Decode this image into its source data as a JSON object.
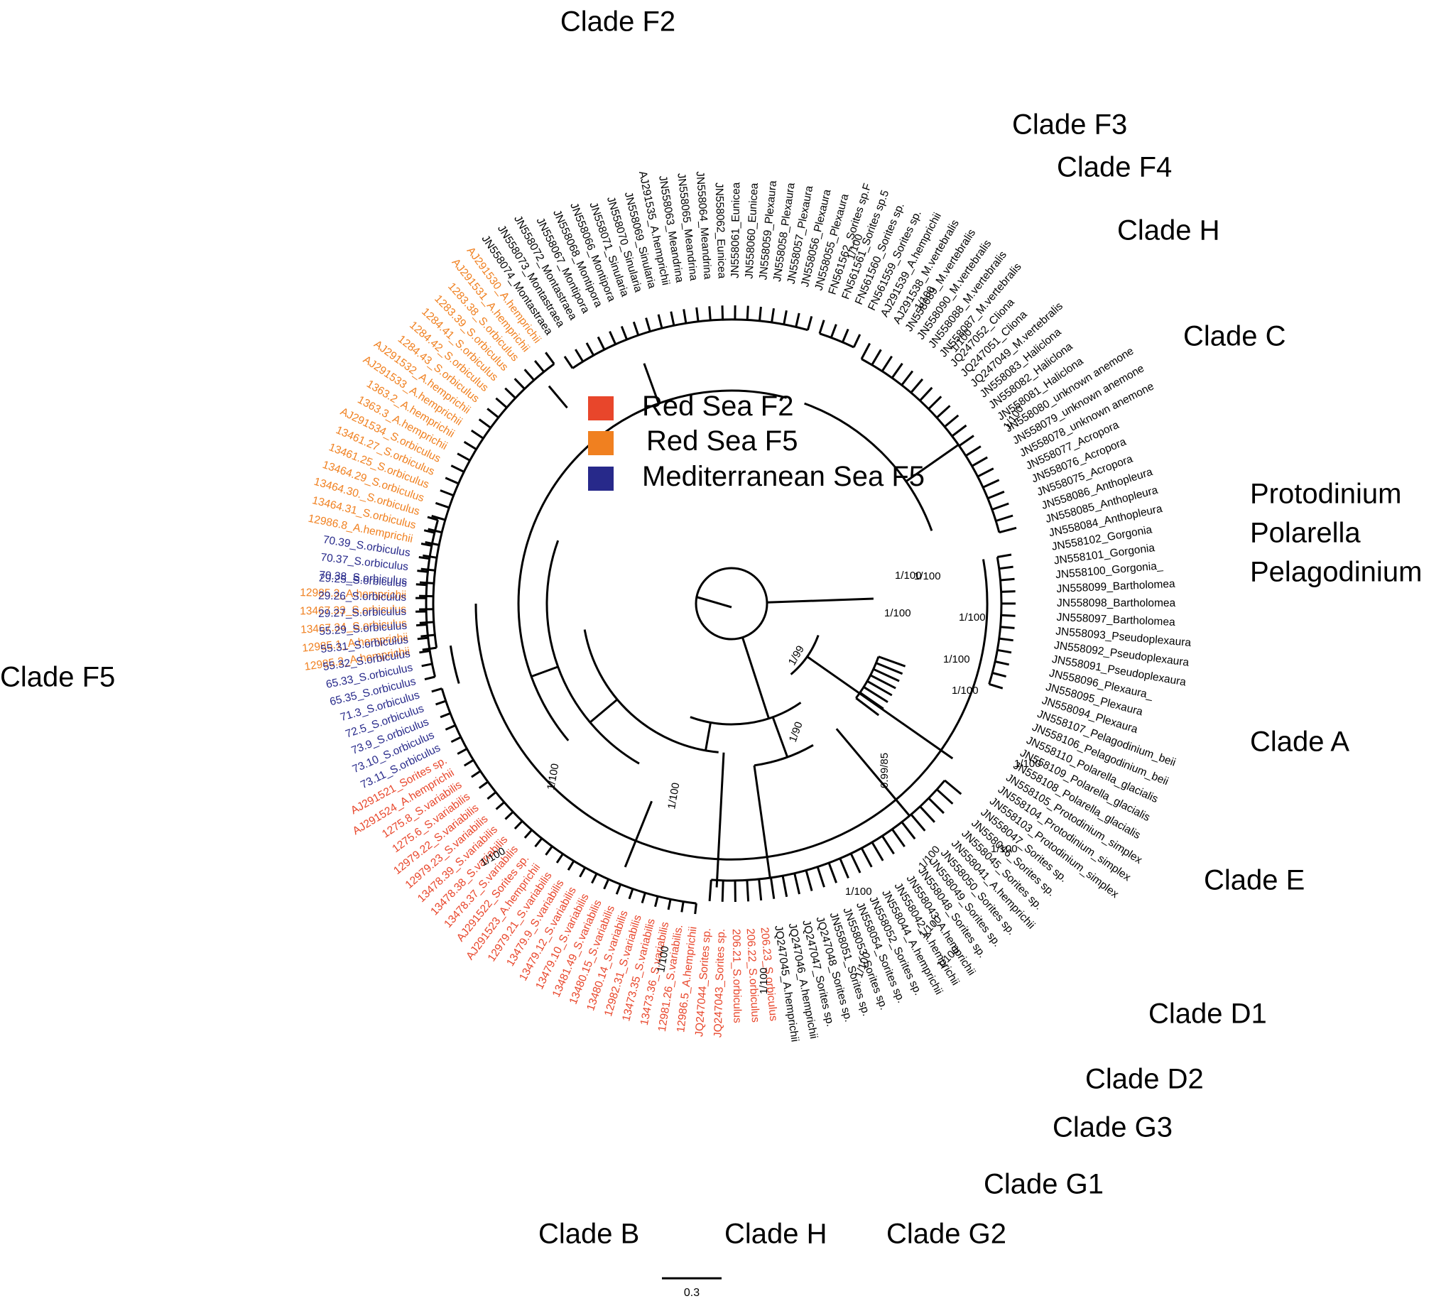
{
  "colors": {
    "red_sea_f2": "#e8462b",
    "red_sea_f5": "#f08020",
    "mediterranean_f5": "#27298a",
    "default": "#000000"
  },
  "legend": [
    {
      "label": "Red Sea F2",
      "group": "red_sea_f2"
    },
    {
      "label": "Red Sea F5",
      "group": "red_sea_f5"
    },
    {
      "label": "Mediterranean Sea F5",
      "group": "mediterranean_f5"
    }
  ],
  "scale_bar": {
    "label": "0.3"
  },
  "clade_labels": [
    {
      "text": "Clade F2"
    },
    {
      "text": "Clade F3"
    },
    {
      "text": "Clade F4"
    },
    {
      "text": "Clade H"
    },
    {
      "text": "Clade C"
    },
    {
      "text": "Protodinium"
    },
    {
      "text": "Polarella"
    },
    {
      "text": "Pelagodinium"
    },
    {
      "text": "Clade A"
    },
    {
      "text": "Clade E"
    },
    {
      "text": "Clade D1"
    },
    {
      "text": "Clade D2"
    },
    {
      "text": "Clade G3"
    },
    {
      "text": "Clade G1"
    },
    {
      "text": "Clade G2"
    },
    {
      "text": "Clade H"
    },
    {
      "text": "Clade B"
    },
    {
      "text": "Clade F5"
    }
  ],
  "support_values": [
    "1/100",
    "1/100",
    "1/100",
    "1/100",
    "1/100",
    "1/100",
    "1/100",
    "1/100",
    "1/100",
    "1/100",
    "1/99",
    "1/90",
    "1/100",
    "1/100",
    "1/100",
    "0.99/85",
    "1/100",
    "1/100",
    "1/100",
    "1/100",
    "1/100",
    "1/100",
    "1/100",
    "1/100",
    "1/100"
  ],
  "tips": [
    {
      "label": "12985.2_A.hemprichii",
      "group": "red_sea_f5"
    },
    {
      "label": "12985.1_A.hemprichii",
      "group": "red_sea_f5"
    },
    {
      "label": "13467.34_S.orbiculus",
      "group": "red_sea_f5"
    },
    {
      "label": "13467.33_S.orbiculus",
      "group": "red_sea_f5"
    },
    {
      "label": "12985.3_A.hemprichii",
      "group": "red_sea_f5"
    },
    {
      "label": "70.38_S.orbiculus",
      "group": "mediterranean_f5"
    },
    {
      "label": "70.37_S.orbiculus",
      "group": "mediterranean_f5"
    },
    {
      "label": "70.39_S.orbiculus",
      "group": "mediterranean_f5"
    },
    {
      "label": "12986.8_A.hemprichii",
      "group": "red_sea_f5"
    },
    {
      "label": "13464.31_S.orbiculus",
      "group": "red_sea_f5"
    },
    {
      "label": "13464.30._S.orbiculus",
      "group": "red_sea_f5"
    },
    {
      "label": "13464.29_S.orbiculus",
      "group": "red_sea_f5"
    },
    {
      "label": "13461.25_S.orbiculus",
      "group": "red_sea_f5"
    },
    {
      "label": "13461.27_S.orbiculus",
      "group": "red_sea_f5"
    },
    {
      "label": "AJ291534_S.orbiculus",
      "group": "red_sea_f5"
    },
    {
      "label": "1363.3_A.hemprichii",
      "group": "red_sea_f5"
    },
    {
      "label": "1363.2_A.hemprichii",
      "group": "red_sea_f5"
    },
    {
      "label": "AJ291533_A.hemprichii",
      "group": "red_sea_f5"
    },
    {
      "label": "AJ291532_A.hemprichii",
      "group": "red_sea_f5"
    },
    {
      "label": "1284.43_S.orbiculus",
      "group": "red_sea_f5"
    },
    {
      "label": "1284.42_S.orbiculus",
      "group": "red_sea_f5"
    },
    {
      "label": "1284.41_S.orbiculus",
      "group": "red_sea_f5"
    },
    {
      "label": "1283.39_S.orbiculus",
      "group": "red_sea_f5"
    },
    {
      "label": "1283.38_S.orbiculus",
      "group": "red_sea_f5"
    },
    {
      "label": "AJ291531_A.hemprichii",
      "group": "red_sea_f5"
    },
    {
      "label": "AJ291530_A.hemprichii",
      "group": "red_sea_f5"
    },
    {
      "label": "JN558074_Montastraea",
      "group": "default"
    },
    {
      "label": "JN558073_Montastraea",
      "group": "default"
    },
    {
      "label": "JN558072_Montastraea",
      "group": "default"
    },
    {
      "label": "JN558067_Montipora",
      "group": "default"
    },
    {
      "label": "JN558068_Montipora",
      "group": "default"
    },
    {
      "label": "JN558066_Montipora",
      "group": "default"
    },
    {
      "label": "JN558071_Sinularia",
      "group": "default"
    },
    {
      "label": "JN558070_Sinularia",
      "group": "default"
    },
    {
      "label": "JN558069_Sinularia",
      "group": "default"
    },
    {
      "label": "AJ291535_A.hemprichii",
      "group": "default"
    },
    {
      "label": "JN558063_Meandrina",
      "group": "default"
    },
    {
      "label": "JN558065_Meandrina",
      "group": "default"
    },
    {
      "label": "JN558064_Meandrina",
      "group": "default"
    },
    {
      "label": "JN558062_Eunicea",
      "group": "default"
    },
    {
      "label": "JN558061_Eunicea",
      "group": "default"
    },
    {
      "label": "JN558060_Eunicea",
      "group": "default"
    },
    {
      "label": "JN558059_Plexaura",
      "group": "default"
    },
    {
      "label": "JN558058_Plexaura",
      "group": "default"
    },
    {
      "label": "JN558057_Plexaura",
      "group": "default"
    },
    {
      "label": "JN558056_Plexaura",
      "group": "default"
    },
    {
      "label": "JN558055_Plexaura",
      "group": "default"
    },
    {
      "label": "FN561562_Sorites sp.F",
      "group": "default"
    },
    {
      "label": "FN561561_Sorites sp.5",
      "group": "default"
    },
    {
      "label": "FN561560_Sorites sp.",
      "group": "default"
    },
    {
      "label": "FN561559_Sorites sp.",
      "group": "default"
    },
    {
      "label": "AJ291539_A.hemprichii",
      "group": "default"
    },
    {
      "label": "AJ291538_M.vertebralis",
      "group": "default"
    },
    {
      "label": "JN558089_M.vertebralis",
      "group": "default"
    },
    {
      "label": "JN558090_M.vertebralis",
      "group": "default"
    },
    {
      "label": "JN558088_M.vertebralis",
      "group": "default"
    },
    {
      "label": "JN558087_M.vertebralis",
      "group": "default"
    },
    {
      "label": "JQ247052_Cliona",
      "group": "default"
    },
    {
      "label": "JQ247051_Cliona",
      "group": "default"
    },
    {
      "label": "JQ247049_M.vertebralis",
      "group": "default"
    },
    {
      "label": "JN558083_Haliclona",
      "group": "default"
    },
    {
      "label": "JN558082_Haliclona",
      "group": "default"
    },
    {
      "label": "JN558081_Haliclona",
      "group": "default"
    },
    {
      "label": "JN558080_unknown anemone",
      "group": "default"
    },
    {
      "label": "JN558079_unknown anemone",
      "group": "default"
    },
    {
      "label": "JN558078_unknown anemone",
      "group": "default"
    },
    {
      "label": "JN558077_Acropora",
      "group": "default"
    },
    {
      "label": "JN558076_Acropora",
      "group": "default"
    },
    {
      "label": "JN558075_Acropora",
      "group": "default"
    },
    {
      "label": "JN558086_Anthopleura",
      "group": "default"
    },
    {
      "label": "JN558085_Anthopleura",
      "group": "default"
    },
    {
      "label": "JN558084_Anthopleura",
      "group": "default"
    },
    {
      "label": "JN558102_Gorgonia",
      "group": "default"
    },
    {
      "label": "JN558101_Gorgonia",
      "group": "default"
    },
    {
      "label": "JN558100_Gorgonia_",
      "group": "default"
    },
    {
      "label": "JN558099_Bartholomea",
      "group": "default"
    },
    {
      "label": "JN558098_Bartholomea",
      "group": "default"
    },
    {
      "label": "JN558097_Bartholomea",
      "group": "default"
    },
    {
      "label": "JN558093_Pseudoplexaura",
      "group": "default"
    },
    {
      "label": "JN558092_Pseudoplexaura",
      "group": "default"
    },
    {
      "label": "JN558091_Pseudoplexaura",
      "group": "default"
    },
    {
      "label": "JN558096_Plexaura_",
      "group": "default"
    },
    {
      "label": "JN558095_Plexaura",
      "group": "default"
    },
    {
      "label": "JN558094_Plexaura",
      "group": "default"
    },
    {
      "label": "JN558107_Pelagodinium_beii",
      "group": "default"
    },
    {
      "label": "JN558106_Pelagodinium_beii",
      "group": "default"
    },
    {
      "label": "JN558110_Polarella_glacialis",
      "group": "default"
    },
    {
      "label": "JN558109_Polarella_glacialis",
      "group": "default"
    },
    {
      "label": "JN558108_Polarella_glacialis",
      "group": "default"
    },
    {
      "label": "JN558105_Protodinium_simplex",
      "group": "default"
    },
    {
      "label": "JN558104_Protodinium_simplex",
      "group": "default"
    },
    {
      "label": "JN558103_Protodinium_simplex",
      "group": "default"
    },
    {
      "label": "JN558047_Sorites sp.",
      "group": "default"
    },
    {
      "label": "JN558046_Sorites sp.",
      "group": "default"
    },
    {
      "label": "JN558045_Sorites sp.",
      "group": "default"
    },
    {
      "label": "JN558041_A.hemprichii",
      "group": "default"
    },
    {
      "label": "JN558050_Sorites sp.",
      "group": "default"
    },
    {
      "label": "JN558049_Sorites sp.",
      "group": "default"
    },
    {
      "label": "JN558048_Sorites sp.",
      "group": "default"
    },
    {
      "label": "JN558043_A.hemprichii",
      "group": "default"
    },
    {
      "label": "JN558042_A.hemprichii",
      "group": "default"
    },
    {
      "label": "JN558044_A.hemprichii",
      "group": "default"
    },
    {
      "label": "JN558052_Sorites sp.",
      "group": "default"
    },
    {
      "label": "JN558054_Sorites sp.",
      "group": "default"
    },
    {
      "label": "JN558053_Sorites sp.",
      "group": "default"
    },
    {
      "label": "JN558051_Sorites sp.",
      "group": "default"
    },
    {
      "label": "JQ247048_Sorites sp.",
      "group": "default"
    },
    {
      "label": "JQ247047_Sorites sp.",
      "group": "default"
    },
    {
      "label": "JQ247046_A.hemprichii",
      "group": "default"
    },
    {
      "label": "JQ247045_A.hemprichii",
      "group": "default"
    },
    {
      "label": "206.23_S.orbiculus",
      "group": "red_sea_f2"
    },
    {
      "label": "206.22_S.orbiculus",
      "group": "red_sea_f2"
    },
    {
      "label": "206.21_S.orbiculus",
      "group": "red_sea_f2"
    },
    {
      "label": "JQ247043_Sorites sp.",
      "group": "red_sea_f2"
    },
    {
      "label": "JQ247044_Sorites sp.",
      "group": "red_sea_f2"
    },
    {
      "label": "12986.5_A.hemprichii",
      "group": "red_sea_f2"
    },
    {
      "label": "12981.26_S.variabilis.",
      "group": "red_sea_f2"
    },
    {
      "label": "13473.36_S.variabilis",
      "group": "red_sea_f2"
    },
    {
      "label": "13473.35_S.variabilis",
      "group": "red_sea_f2"
    },
    {
      "label": "12982.31_S.variabilis",
      "group": "red_sea_f2"
    },
    {
      "label": "13480.14_S.variabilis",
      "group": "red_sea_f2"
    },
    {
      "label": "13480.15_S.variabilis",
      "group": "red_sea_f2"
    },
    {
      "label": "13481.49_S.variabilis",
      "group": "red_sea_f2"
    },
    {
      "label": "13479.10_S.variabilis",
      "group": "red_sea_f2"
    },
    {
      "label": "13479.12_S.variabilis",
      "group": "red_sea_f2"
    },
    {
      "label": "13479.9_S.variabilis",
      "group": "red_sea_f2"
    },
    {
      "label": "12979.21_S.variabilis",
      "group": "red_sea_f2"
    },
    {
      "label": "AJ291523_A.hemprichii",
      "group": "red_sea_f2"
    },
    {
      "label": "AJ291522_Sorites sp.",
      "group": "red_sea_f2"
    },
    {
      "label": "13478.37_S.variabilis",
      "group": "red_sea_f2"
    },
    {
      "label": "13478.38_S.variabilis",
      "group": "red_sea_f2"
    },
    {
      "label": "13478.39_S.variabilis",
      "group": "red_sea_f2"
    },
    {
      "label": "12979.23_S.variabilis",
      "group": "red_sea_f2"
    },
    {
      "label": "12979.22_S.variabilis",
      "group": "red_sea_f2"
    },
    {
      "label": "1275.6_S.variabilis",
      "group": "red_sea_f2"
    },
    {
      "label": "1275.8_S.variabilis",
      "group": "red_sea_f2"
    },
    {
      "label": "AJ291524_A.hemprichii",
      "group": "red_sea_f2"
    },
    {
      "label": "AJ291521_Sorites sp.",
      "group": "red_sea_f2"
    },
    {
      "label": "73.11_S.orbiculus",
      "group": "mediterranean_f5"
    },
    {
      "label": "73.10_S.orbiculus",
      "group": "mediterranean_f5"
    },
    {
      "label": "73.9_S.orbiculus",
      "group": "mediterranean_f5"
    },
    {
      "label": "72.5_S.orbiculus",
      "group": "mediterranean_f5"
    },
    {
      "label": "71.3_S.orbiculus",
      "group": "mediterranean_f5"
    },
    {
      "label": "65.35_S.orbiculus",
      "group": "mediterranean_f5"
    },
    {
      "label": "65.33_S.orbiculus",
      "group": "mediterranean_f5"
    },
    {
      "label": "55.32_S.orbiculus",
      "group": "mediterranean_f5"
    },
    {
      "label": "55.31_S.orbiculus",
      "group": "mediterranean_f5"
    },
    {
      "label": "55.29_S.orbiculus",
      "group": "mediterranean_f5"
    },
    {
      "label": "29.27_S.orbiculus",
      "group": "mediterranean_f5"
    },
    {
      "label": "29.26_S.orbiculus",
      "group": "mediterranean_f5"
    },
    {
      "label": "29.25_S.orbiculus",
      "group": "mediterranean_f5"
    }
  ]
}
